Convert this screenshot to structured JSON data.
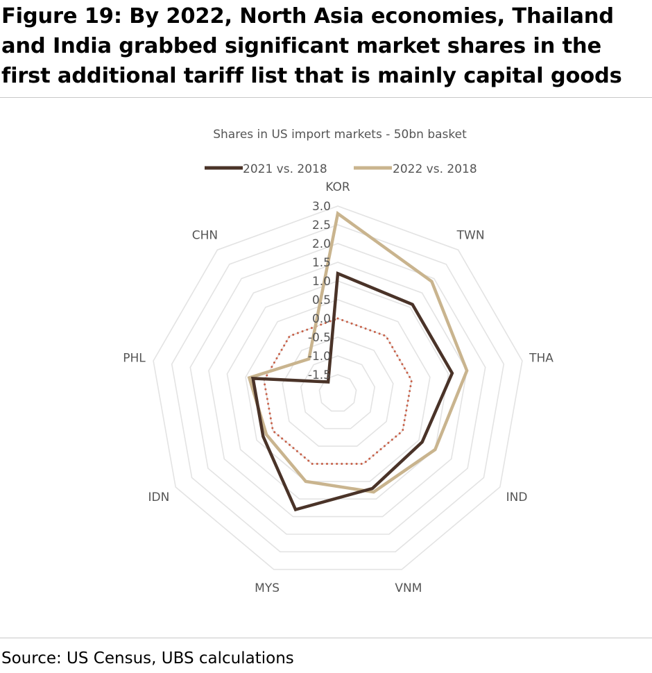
{
  "figure": {
    "title": "Figure 19: By 2022, North Asia economies, Thailand and India grabbed significant market shares in the first additional tariff list that is mainly capital goods",
    "source": "Source: US Census, UBS calculations"
  },
  "chart_data": {
    "type": "radar",
    "title": "Shares in US import markets - 50bn basket",
    "categories": [
      "KOR",
      "TWN",
      "THA",
      "IND",
      "VNM",
      "MYS",
      "IDN",
      "PHL",
      "CHN"
    ],
    "axis": {
      "min": -2.0,
      "max": 3.0,
      "ticks": [
        3.0,
        2.5,
        2.0,
        1.5,
        1.0,
        0.5,
        0.0,
        -0.5,
        -1.0,
        -1.5
      ],
      "tick_labels": [
        "3.0",
        "2.5",
        "2.0",
        "1.5",
        "1.0",
        "0.5",
        "0.0",
        "-0.5",
        "-1.0",
        "-1.5"
      ]
    },
    "series": [
      {
        "name": "2021 vs. 2018",
        "color": "#4a3328",
        "values": [
          1.2,
          1.1,
          1.1,
          0.6,
          0.7,
          1.3,
          0.3,
          0.3,
          -1.6
        ]
      },
      {
        "name": "2022 vs. 2018",
        "color": "#c9b48e",
        "values": [
          2.8,
          1.9,
          1.5,
          1.0,
          0.8,
          0.5,
          0.2,
          0.4,
          -0.8
        ]
      }
    ],
    "zero_line": {
      "value": 0.0,
      "color": "#c8624a",
      "style": "dotted"
    },
    "legend": "top",
    "grid": true
  }
}
